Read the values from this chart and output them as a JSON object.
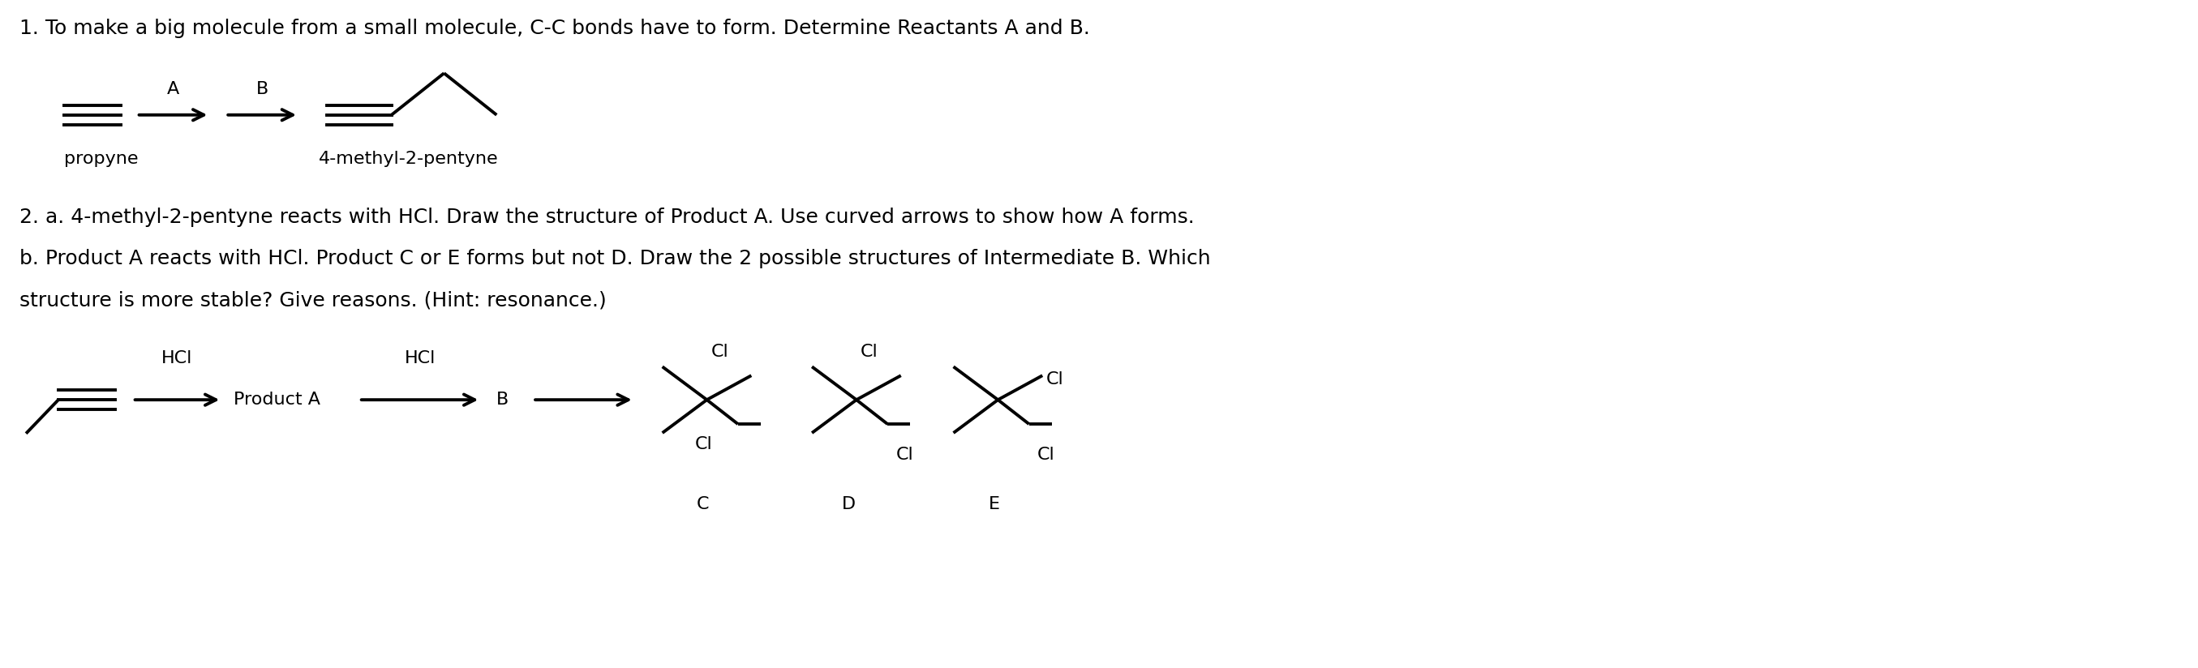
{
  "background_color": "#ffffff",
  "text_color": "#000000",
  "line_color": "#000000",
  "fig_width": 27.1,
  "fig_height": 8.24,
  "line1": "1. To make a big molecule from a small molecule, C-C bonds have to form. Determine Reactants A and B.",
  "line2a": "2. a. 4-methyl-2-pentyne reacts with HCl. Draw the structure of Product A. Use curved arrows to show how A forms.",
  "line2b": "b. Product A reacts with HCl. Product C or E forms but not D. Draw the 2 possible structures of Intermediate B. Which",
  "line2c": "structure is more stable? Give reasons. (Hint: resonance.)",
  "label_propyne": "propyne",
  "label_4methyl": "4-methyl-2-pentyne",
  "label_A": "A",
  "label_B_arrow": "B",
  "label_HCl1": "HCl",
  "label_HCl2": "HCl",
  "label_ProductA": "Product A",
  "label_B2": "B",
  "label_C": "C",
  "label_D": "D",
  "label_E": "E",
  "label_Cl": "Cl",
  "fontsize_main": 18,
  "fontsize_label": 17,
  "fontsize_mol": 16
}
